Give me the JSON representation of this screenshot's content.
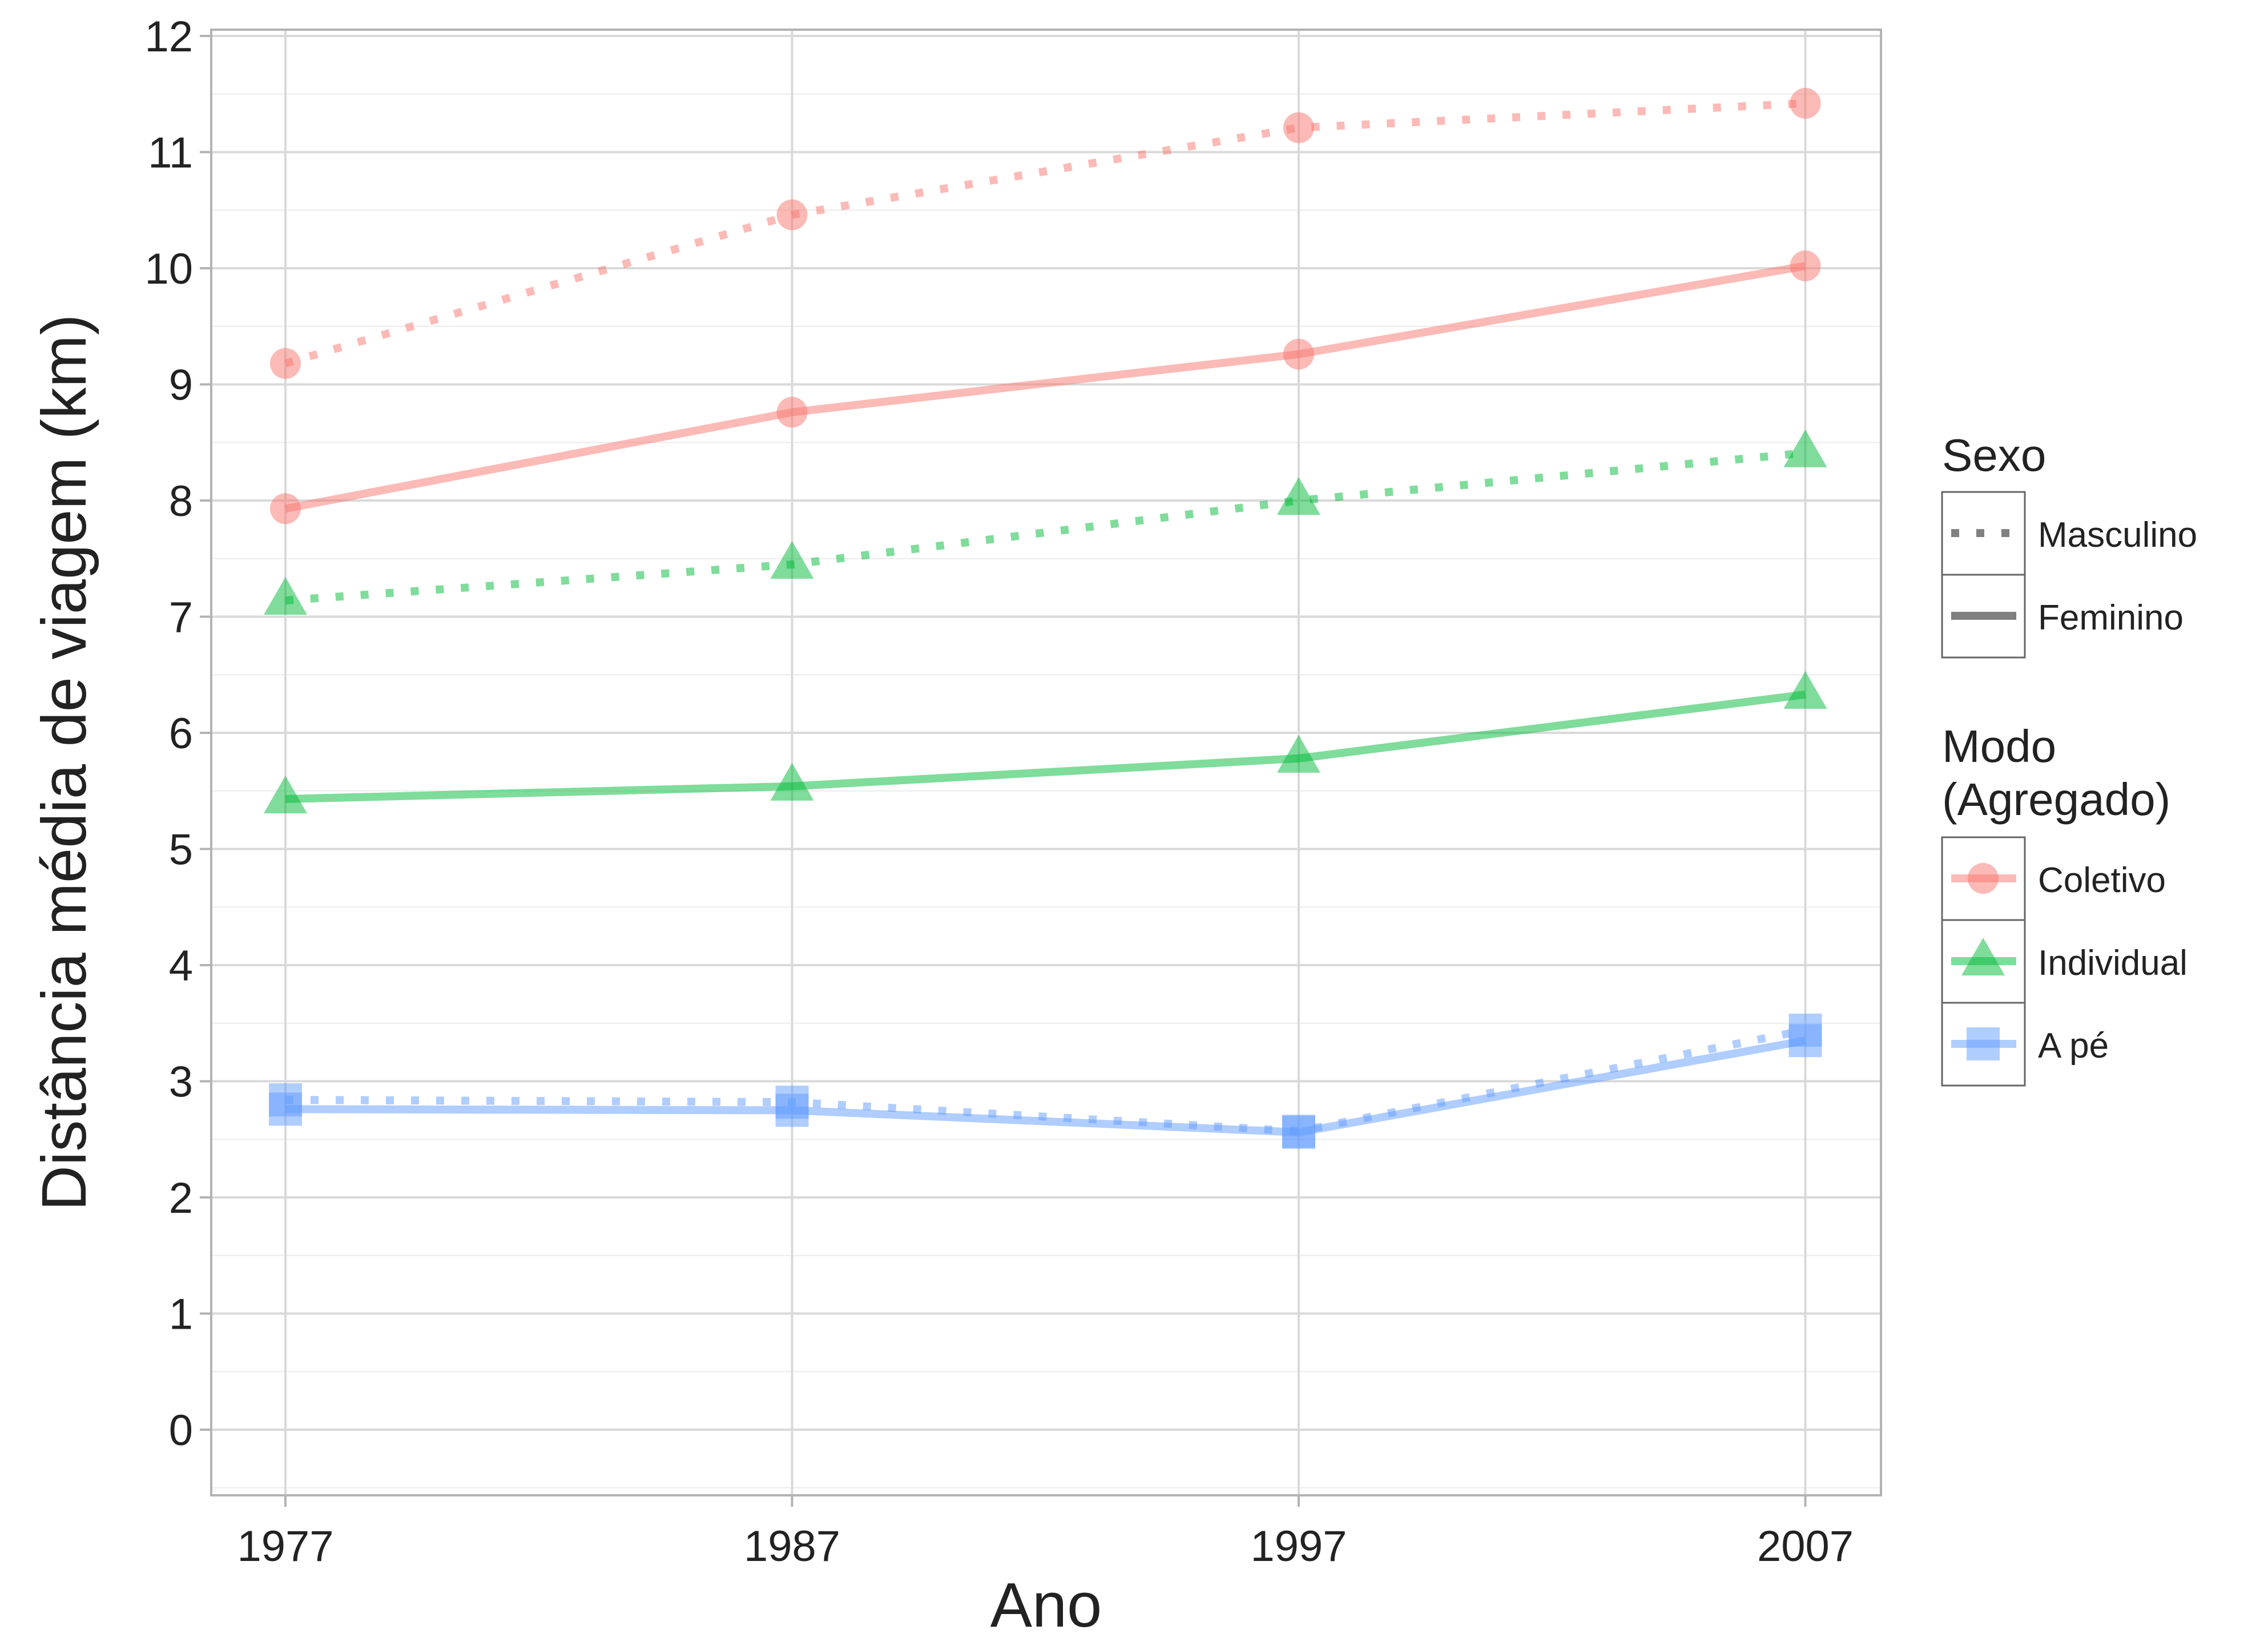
{
  "chart_data": {
    "type": "line",
    "xlabel": "Ano",
    "ylabel": "Distância média de viagem (km)",
    "x": [
      1977,
      1987,
      1997,
      2007
    ],
    "x_ticks": [
      "1977",
      "1987",
      "1997",
      "2007"
    ],
    "y_ticks": [
      "0",
      "1",
      "2",
      "3",
      "4",
      "5",
      "6",
      "7",
      "8",
      "9",
      "10",
      "11",
      "12"
    ],
    "ylim": [
      -0.57,
      12.05
    ],
    "grid": true,
    "legend_position": "right",
    "colors": {
      "Coletivo": "#f8766d",
      "Individual": "#00ba38",
      "A pé": "#619cff",
      "legend_line": "#808080",
      "grid_major": "#d9d9d9",
      "grid_minor": "#efefef",
      "panel_border": "#b3b3b3"
    },
    "legends": {
      "sexo": {
        "title": "Sexo",
        "items": [
          {
            "label": "Masculino",
            "linetype": "dotted"
          },
          {
            "label": "Feminino",
            "linetype": "solid"
          }
        ]
      },
      "modo": {
        "title_line1": "Modo",
        "title_line2": "(Agregado)",
        "items": [
          {
            "label": "Coletivo",
            "shape": "circle"
          },
          {
            "label": "Individual",
            "shape": "triangle"
          },
          {
            "label": "A pé",
            "shape": "square"
          }
        ]
      }
    },
    "series": [
      {
        "modo": "Coletivo",
        "sexo": "Masculino",
        "shape": "circle",
        "values": [
          9.18,
          10.46,
          11.21,
          11.42
        ]
      },
      {
        "modo": "Coletivo",
        "sexo": "Feminino",
        "shape": "circle",
        "values": [
          7.93,
          8.76,
          9.26,
          10.02
        ]
      },
      {
        "modo": "Individual",
        "sexo": "Masculino",
        "shape": "triangle",
        "values": [
          7.14,
          7.45,
          8.0,
          8.41
        ]
      },
      {
        "modo": "Individual",
        "sexo": "Feminino",
        "shape": "triangle",
        "values": [
          5.43,
          5.54,
          5.78,
          6.33
        ]
      },
      {
        "modo": "A pé",
        "sexo": "Masculino",
        "shape": "square",
        "values": [
          2.84,
          2.82,
          2.57,
          3.44
        ]
      },
      {
        "modo": "A pé",
        "sexo": "Feminino",
        "shape": "square",
        "values": [
          2.76,
          2.75,
          2.56,
          3.35
        ]
      }
    ]
  }
}
